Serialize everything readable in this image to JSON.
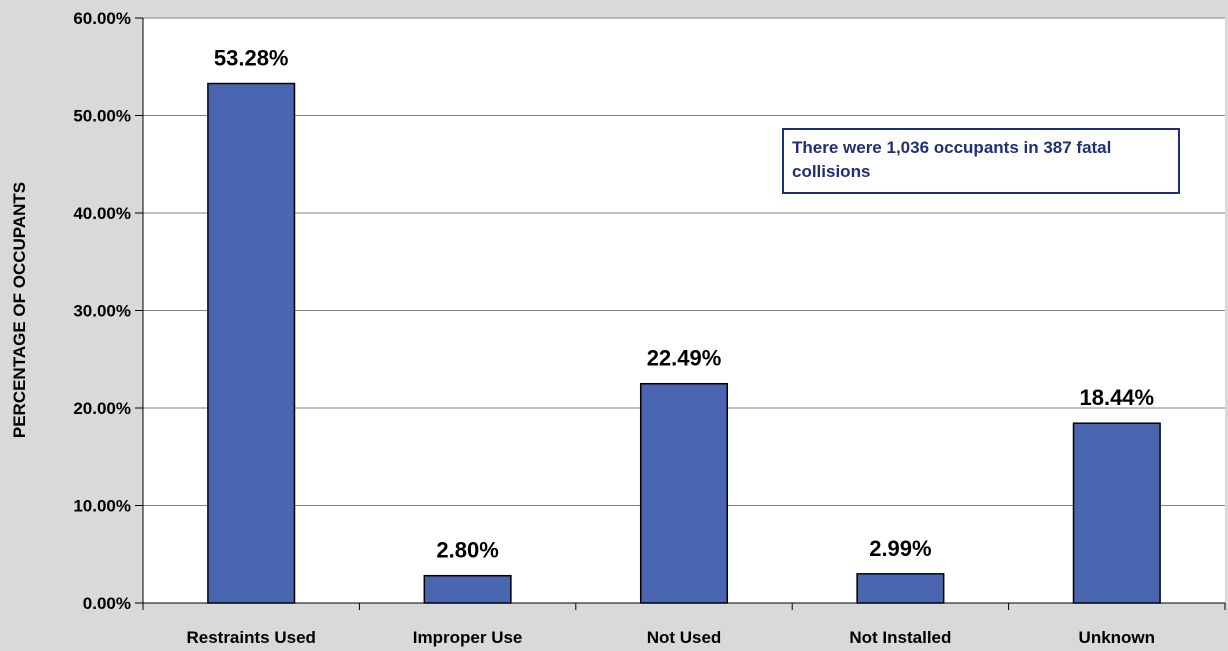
{
  "chart_data": {
    "type": "bar",
    "categories": [
      "Restraints Used",
      "Improper Use",
      "Not Used",
      "Not Installed",
      "Unknown"
    ],
    "values": [
      53.28,
      2.8,
      22.49,
      2.99,
      18.44
    ],
    "data_labels": [
      "53.28%",
      "2.80%",
      "22.49%",
      "2.99%",
      "18.44%"
    ],
    "ylabel": "PERCENTAGE OF OCCUPANTS",
    "xlabel": "",
    "title": "",
    "ylim": [
      0,
      60
    ],
    "yticks": [
      0,
      10,
      20,
      30,
      40,
      50,
      60
    ],
    "ytick_labels": [
      "0.00%",
      "10.00%",
      "20.00%",
      "30.00%",
      "40.00%",
      "50.00%",
      "60.00%"
    ],
    "grid": "horizontal",
    "bar_color": "#4a66b0",
    "annotation": "There were 1,036 occupants in 387 fatal collisions"
  },
  "colors": {
    "background": "#d9d9d9",
    "plot_background": "#ffffff",
    "annotation": "#1f2f78"
  }
}
